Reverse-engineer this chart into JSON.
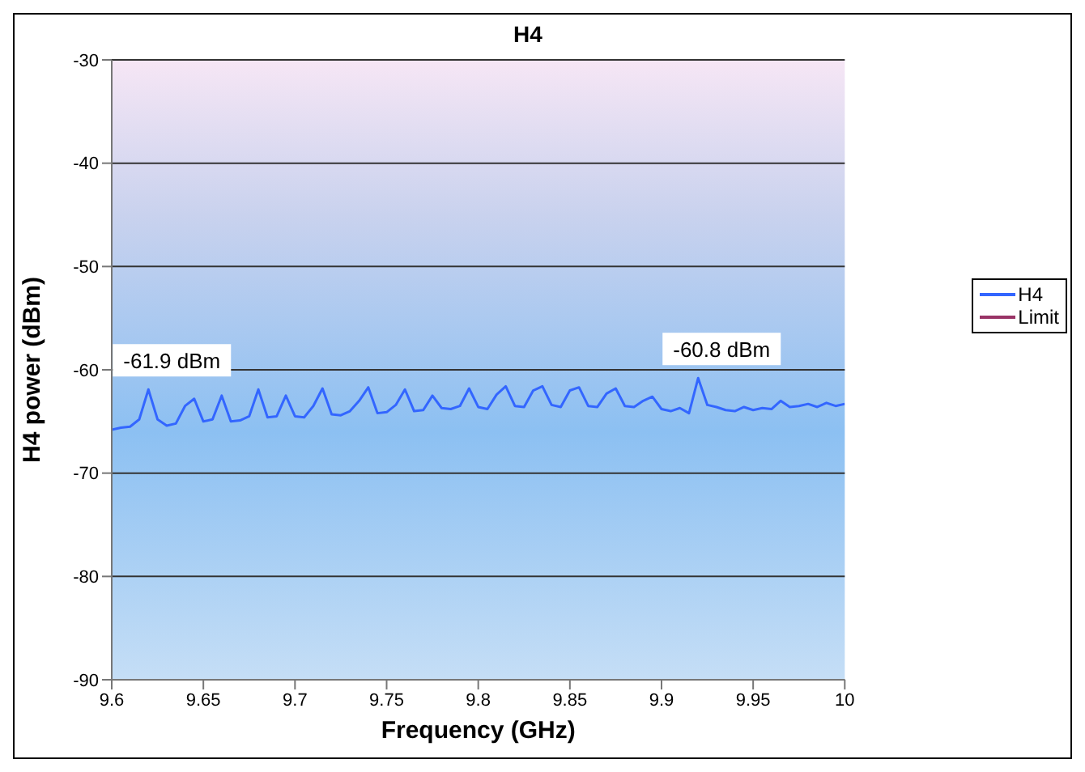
{
  "chart_data": {
    "type": "line",
    "title": "H4",
    "xlabel": "Frequency (GHz)",
    "ylabel": "H4 power (dBm)",
    "x": [
      9.6,
      9.605,
      9.61,
      9.615,
      9.62,
      9.625,
      9.63,
      9.635,
      9.64,
      9.645,
      9.65,
      9.655,
      9.66,
      9.665,
      9.67,
      9.675,
      9.68,
      9.685,
      9.69,
      9.695,
      9.7,
      9.705,
      9.71,
      9.715,
      9.72,
      9.725,
      9.73,
      9.735,
      9.74,
      9.745,
      9.75,
      9.755,
      9.76,
      9.765,
      9.77,
      9.775,
      9.78,
      9.785,
      9.79,
      9.795,
      9.8,
      9.805,
      9.81,
      9.815,
      9.82,
      9.825,
      9.83,
      9.835,
      9.84,
      9.845,
      9.85,
      9.855,
      9.86,
      9.865,
      9.87,
      9.875,
      9.88,
      9.885,
      9.89,
      9.895,
      9.9,
      9.905,
      9.91,
      9.915,
      9.92,
      9.925,
      9.93,
      9.935,
      9.94,
      9.945,
      9.95,
      9.955,
      9.96,
      9.965,
      9.97,
      9.975,
      9.98,
      9.985,
      9.99,
      9.995,
      10
    ],
    "series": [
      {
        "name": "H4",
        "color": "#3366ff",
        "values": [
          -65.8,
          -65.6,
          -65.5,
          -64.8,
          -61.9,
          -64.8,
          -65.4,
          -65.2,
          -63.5,
          -62.8,
          -65.0,
          -64.8,
          -62.5,
          -65.0,
          -64.9,
          -64.5,
          -61.9,
          -64.6,
          -64.5,
          -62.5,
          -64.5,
          -64.6,
          -63.5,
          -61.8,
          -64.3,
          -64.4,
          -64.0,
          -63.0,
          -61.7,
          -64.2,
          -64.1,
          -63.4,
          -61.9,
          -64.0,
          -63.9,
          -62.5,
          -63.7,
          -63.8,
          -63.5,
          -61.8,
          -63.6,
          -63.8,
          -62.4,
          -61.6,
          -63.5,
          -63.6,
          -62.0,
          -61.6,
          -63.4,
          -63.6,
          -62.0,
          -61.7,
          -63.5,
          -63.6,
          -62.3,
          -61.8,
          -63.5,
          -63.6,
          -63.0,
          -62.6,
          -63.8,
          -64.0,
          -63.7,
          -64.2,
          -60.8,
          -63.4,
          -63.6,
          -63.9,
          -64.0,
          -63.6,
          -63.9,
          -63.7,
          -63.8,
          -63.0,
          -63.6,
          -63.5,
          -63.3,
          -63.6,
          -63.2,
          -63.5,
          -63.3
        ]
      },
      {
        "name": "Limit",
        "color": "#993366",
        "values": [
          null,
          null,
          null,
          null,
          null,
          null,
          null,
          null,
          null,
          null,
          null,
          null,
          null,
          null,
          null,
          null,
          null,
          null,
          null,
          null,
          null,
          null,
          null,
          null,
          null,
          null,
          null,
          null,
          null,
          null,
          null,
          null,
          null,
          null,
          null,
          null,
          null,
          null,
          null,
          null,
          null,
          null,
          null,
          null,
          null,
          null,
          null,
          null,
          null,
          null,
          null,
          null,
          null,
          null,
          null,
          null,
          null,
          null,
          null,
          null,
          null,
          null,
          null,
          null,
          null,
          null,
          null,
          null,
          null,
          null,
          null,
          null,
          null,
          null,
          null,
          null,
          null,
          null,
          null,
          null,
          null
        ]
      }
    ],
    "xlim": [
      9.6,
      10
    ],
    "xticks": [
      9.6,
      9.65,
      9.7,
      9.75,
      9.8,
      9.85,
      9.9,
      9.95,
      10
    ],
    "ylim": [
      -90,
      -30
    ],
    "yticks": [
      -90,
      -80,
      -70,
      -60,
      -50,
      -40,
      -30
    ],
    "grid": "y",
    "legend": "right",
    "marker": "none",
    "line_style": "solid",
    "annotations": [
      {
        "text": "-61.9 dBm",
        "x": 9.62,
        "y": -61.9
      },
      {
        "text": "-60.8 dBm",
        "x": 9.92,
        "y": -60.8
      }
    ]
  }
}
